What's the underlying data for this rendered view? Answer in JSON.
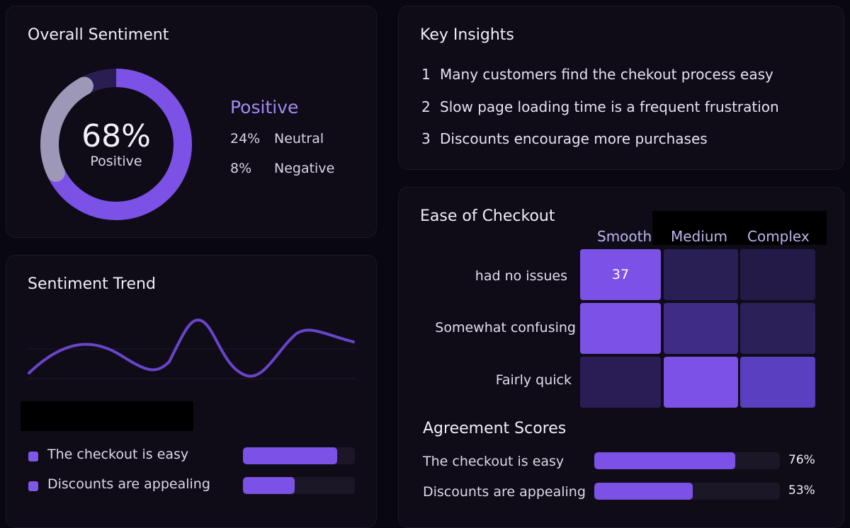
{
  "overall": {
    "title": "Overall Sentiment",
    "positive_pct": 68,
    "center_value": "68%",
    "center_label": "Positive",
    "positive_label": "Positive",
    "legend": [
      {
        "value": "24%",
        "label": "Neutral"
      },
      {
        "value": "8%",
        "label": "Negative"
      }
    ],
    "colors": {
      "positive": "#7b52e5",
      "neutral": "#9e98b8",
      "track": "#2a1d52"
    }
  },
  "insights": {
    "title": "Key Insights",
    "items": [
      {
        "num": "1",
        "text": "Many customers find  the chekout process easy"
      },
      {
        "num": "2",
        "text": "Slow page loading time is a frequent frustration"
      },
      {
        "num": "3",
        "text": "Discounts encourage more purchases"
      }
    ]
  },
  "trend": {
    "title": "Sentiment Trend",
    "line_color": "#6a44c9",
    "bars": [
      {
        "label": "The checkout is easy",
        "value": 0.84
      },
      {
        "label": "Discounts are appealing",
        "value": 0.46
      }
    ]
  },
  "ease": {
    "title": "Ease of Checkout",
    "columns": [
      "Smooth",
      "Medium",
      "Complex"
    ],
    "rows": [
      "had no issues",
      "Somewhat confusing",
      "Fairly quick"
    ],
    "cells": [
      [
        {
          "text": "37",
          "color": "#7c52e6"
        },
        {
          "text": "",
          "color": "#2a1f55"
        },
        {
          "text": "",
          "color": "#241a48"
        }
      ],
      [
        {
          "text": "",
          "color": "#7c52e6"
        },
        {
          "text": "",
          "color": "#3f2c86"
        },
        {
          "text": "",
          "color": "#2c2058"
        }
      ],
      [
        {
          "text": "",
          "color": "#2a1d55"
        },
        {
          "text": "",
          "color": "#7c52e6"
        },
        {
          "text": "",
          "color": "#5a3fc0"
        }
      ]
    ]
  },
  "agreement": {
    "title": "Agreement Scores",
    "items": [
      {
        "label": "The checkout is easy",
        "value": 0.76,
        "display": "76%"
      },
      {
        "label": "Discounts are appealing",
        "value": 0.53,
        "display": "53%"
      }
    ]
  }
}
